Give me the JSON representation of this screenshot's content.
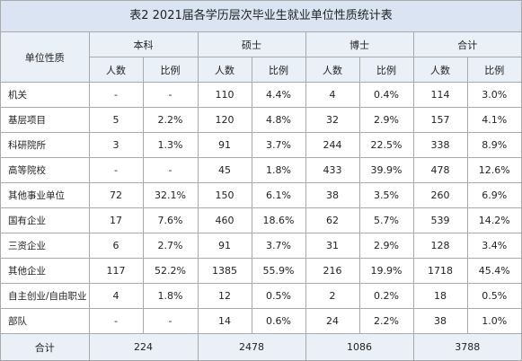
{
  "title": "表2 2021届各学历层次毕业生就业单位性质统计表",
  "header": {
    "unit_type": "单位性质",
    "groups": [
      "本科",
      "硕士",
      "博士",
      "合计"
    ],
    "count_label": "人数",
    "ratio_label": "比例"
  },
  "rows": [
    {
      "cat": "机关",
      "vals": [
        "-",
        "-",
        "110",
        "4.4%",
        "4",
        "0.4%",
        "114",
        "3.0%"
      ]
    },
    {
      "cat": "基层项目",
      "vals": [
        "5",
        "2.2%",
        "120",
        "4.8%",
        "32",
        "2.9%",
        "157",
        "4.1%"
      ]
    },
    {
      "cat": "科研院所",
      "vals": [
        "3",
        "1.3%",
        "91",
        "3.7%",
        "244",
        "22.5%",
        "338",
        "8.9%"
      ]
    },
    {
      "cat": "高等院校",
      "vals": [
        "-",
        "-",
        "45",
        "1.8%",
        "433",
        "39.9%",
        "478",
        "12.6%"
      ]
    },
    {
      "cat": "其他事业单位",
      "vals": [
        "72",
        "32.1%",
        "150",
        "6.1%",
        "38",
        "3.5%",
        "260",
        "6.9%"
      ]
    },
    {
      "cat": "国有企业",
      "vals": [
        "17",
        "7.6%",
        "460",
        "18.6%",
        "62",
        "5.7%",
        "539",
        "14.2%"
      ]
    },
    {
      "cat": "三资企业",
      "vals": [
        "6",
        "2.7%",
        "91",
        "3.7%",
        "31",
        "2.9%",
        "128",
        "3.4%"
      ]
    },
    {
      "cat": "其他企业",
      "vals": [
        "117",
        "52.2%",
        "1385",
        "55.9%",
        "216",
        "19.9%",
        "1718",
        "45.4%"
      ]
    },
    {
      "cat": "自主创业/自由职业",
      "vals": [
        "4",
        "1.8%",
        "12",
        "0.5%",
        "2",
        "0.2%",
        "18",
        "0.5%"
      ]
    },
    {
      "cat": "部队",
      "vals": [
        "-",
        "-",
        "14",
        "0.6%",
        "24",
        "2.2%",
        "38",
        "1.0%"
      ]
    }
  ],
  "total": {
    "label": "合计",
    "vals": [
      "224",
      "2478",
      "1086",
      "3788"
    ]
  }
}
